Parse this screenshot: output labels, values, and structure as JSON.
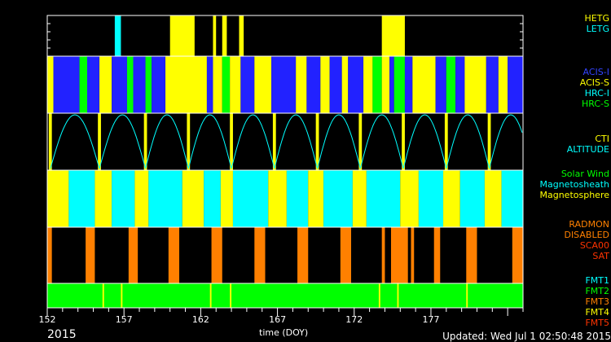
{
  "chart_data": {
    "type": "timeline",
    "xlabel": "time (DOY)",
    "xlim": [
      152,
      183
    ],
    "xticks": [
      "152",
      "157",
      "162",
      "167",
      "172",
      "177"
    ],
    "year": "2015",
    "updated": "Updated: Wed Jul  1 02:50:48 2015",
    "panels": [
      {
        "name": "grating",
        "legend": [
          {
            "label": "HETG",
            "color": "#ffff00"
          },
          {
            "label": "LETG",
            "color": "#00ffff"
          }
        ],
        "segments": [
          {
            "start": 156.4,
            "end": 156.8,
            "color": "#00ffff"
          },
          {
            "start": 160.0,
            "end": 161.6,
            "color": "#ffff00"
          },
          {
            "start": 162.8,
            "end": 163.0,
            "color": "#ffff00"
          },
          {
            "start": 163.4,
            "end": 163.7,
            "color": "#ffff00"
          },
          {
            "start": 164.5,
            "end": 164.8,
            "color": "#ffff00"
          },
          {
            "start": 173.8,
            "end": 175.3,
            "color": "#ffff00"
          }
        ]
      },
      {
        "name": "instrument",
        "legend": [
          {
            "label": "ACIS-I",
            "color": "#2222ff"
          },
          {
            "label": "ACIS-S",
            "color": "#ffff00"
          },
          {
            "label": "HRC-I",
            "color": "#00ffff"
          },
          {
            "label": "HRC-S",
            "color": "#00ff00"
          }
        ],
        "segments": [
          {
            "start": 152.0,
            "end": 152.4,
            "color": "#ffff00"
          },
          {
            "start": 152.4,
            "end": 154.1,
            "color": "#2222ff"
          },
          {
            "start": 154.1,
            "end": 154.6,
            "color": "#00ff00"
          },
          {
            "start": 154.6,
            "end": 155.4,
            "color": "#2222ff"
          },
          {
            "start": 155.4,
            "end": 156.2,
            "color": "#ffff00"
          },
          {
            "start": 156.2,
            "end": 157.2,
            "color": "#2222ff"
          },
          {
            "start": 157.2,
            "end": 157.6,
            "color": "#00ff00"
          },
          {
            "start": 157.6,
            "end": 158.4,
            "color": "#2222ff"
          },
          {
            "start": 158.4,
            "end": 158.8,
            "color": "#00ff00"
          },
          {
            "start": 158.8,
            "end": 159.7,
            "color": "#2222ff"
          },
          {
            "start": 159.7,
            "end": 162.4,
            "color": "#ffff00"
          },
          {
            "start": 162.4,
            "end": 162.8,
            "color": "#2222ff"
          },
          {
            "start": 162.8,
            "end": 163.4,
            "color": "#ffff00"
          },
          {
            "start": 163.4,
            "end": 163.9,
            "color": "#00ff00"
          },
          {
            "start": 163.9,
            "end": 164.6,
            "color": "#ffff00"
          },
          {
            "start": 164.6,
            "end": 165.5,
            "color": "#2222ff"
          },
          {
            "start": 165.5,
            "end": 166.6,
            "color": "#ffff00"
          },
          {
            "start": 166.6,
            "end": 168.2,
            "color": "#2222ff"
          },
          {
            "start": 168.2,
            "end": 168.9,
            "color": "#ffff00"
          },
          {
            "start": 168.9,
            "end": 169.8,
            "color": "#2222ff"
          },
          {
            "start": 169.8,
            "end": 170.4,
            "color": "#ffff00"
          },
          {
            "start": 170.4,
            "end": 171.2,
            "color": "#2222ff"
          },
          {
            "start": 171.2,
            "end": 171.6,
            "color": "#ffff00"
          },
          {
            "start": 171.6,
            "end": 172.6,
            "color": "#2222ff"
          },
          {
            "start": 172.6,
            "end": 173.2,
            "color": "#ffff00"
          },
          {
            "start": 173.2,
            "end": 173.8,
            "color": "#00ff00"
          },
          {
            "start": 173.8,
            "end": 174.3,
            "color": "#ffff00"
          },
          {
            "start": 174.3,
            "end": 174.6,
            "color": "#2222ff"
          },
          {
            "start": 174.6,
            "end": 175.3,
            "color": "#00ff00"
          },
          {
            "start": 175.3,
            "end": 175.8,
            "color": "#2222ff"
          },
          {
            "start": 175.8,
            "end": 177.3,
            "color": "#ffff00"
          },
          {
            "start": 177.3,
            "end": 178.0,
            "color": "#2222ff"
          },
          {
            "start": 178.0,
            "end": 178.6,
            "color": "#00ff00"
          },
          {
            "start": 178.6,
            "end": 179.2,
            "color": "#2222ff"
          },
          {
            "start": 179.2,
            "end": 180.6,
            "color": "#ffff00"
          },
          {
            "start": 180.6,
            "end": 181.4,
            "color": "#2222ff"
          },
          {
            "start": 181.4,
            "end": 182.0,
            "color": "#ffff00"
          },
          {
            "start": 182.0,
            "end": 183.0,
            "color": "#2222ff"
          }
        ]
      },
      {
        "name": "cti-altitude",
        "legend": [
          {
            "label": "CTI",
            "color": "#ffff00"
          },
          {
            "label": "ALTITUDE",
            "color": "#00ffff"
          }
        ],
        "segments": [
          {
            "start": 152.1,
            "end": 152.3,
            "color": "#ffff00"
          },
          {
            "start": 155.3,
            "end": 155.5,
            "color": "#ffff00"
          },
          {
            "start": 158.3,
            "end": 158.5,
            "color": "#ffff00"
          },
          {
            "start": 161.1,
            "end": 161.3,
            "color": "#ffff00"
          },
          {
            "start": 163.9,
            "end": 164.1,
            "color": "#ffff00"
          },
          {
            "start": 166.7,
            "end": 166.9,
            "color": "#ffff00"
          },
          {
            "start": 169.5,
            "end": 169.7,
            "color": "#ffff00"
          },
          {
            "start": 172.3,
            "end": 172.5,
            "color": "#ffff00"
          },
          {
            "start": 175.1,
            "end": 175.3,
            "color": "#ffff00"
          },
          {
            "start": 177.9,
            "end": 178.1,
            "color": "#ffff00"
          },
          {
            "start": 180.7,
            "end": 180.9,
            "color": "#ffff00"
          }
        ],
        "arc_boundaries": [
          152.2,
          155.4,
          158.4,
          161.2,
          164.0,
          166.8,
          169.6,
          172.4,
          175.2,
          178.0,
          180.8,
          183.6
        ]
      },
      {
        "name": "environment",
        "legend": [
          {
            "label": "Solar Wind",
            "color": "#00ff00"
          },
          {
            "label": "Magnetosheath",
            "color": "#00ffff"
          },
          {
            "label": "Magnetosphere",
            "color": "#ffff00"
          }
        ],
        "segments": [
          {
            "start": 152.0,
            "end": 153.4,
            "color": "#ffff00"
          },
          {
            "start": 153.4,
            "end": 155.1,
            "color": "#00ffff"
          },
          {
            "start": 155.1,
            "end": 156.2,
            "color": "#ffff00"
          },
          {
            "start": 156.2,
            "end": 157.7,
            "color": "#00ffff"
          },
          {
            "start": 157.7,
            "end": 158.6,
            "color": "#ffff00"
          },
          {
            "start": 158.6,
            "end": 160.8,
            "color": "#00ffff"
          },
          {
            "start": 160.8,
            "end": 162.2,
            "color": "#ffff00"
          },
          {
            "start": 162.2,
            "end": 163.3,
            "color": "#00ffff"
          },
          {
            "start": 163.3,
            "end": 164.1,
            "color": "#ffff00"
          },
          {
            "start": 164.1,
            "end": 166.4,
            "color": "#00ffff"
          },
          {
            "start": 166.4,
            "end": 167.6,
            "color": "#ffff00"
          },
          {
            "start": 167.6,
            "end": 169.0,
            "color": "#00ffff"
          },
          {
            "start": 169.0,
            "end": 170.0,
            "color": "#ffff00"
          },
          {
            "start": 170.0,
            "end": 171.9,
            "color": "#00ffff"
          },
          {
            "start": 171.9,
            "end": 172.8,
            "color": "#ffff00"
          },
          {
            "start": 172.8,
            "end": 175.0,
            "color": "#00ffff"
          },
          {
            "start": 175.0,
            "end": 176.2,
            "color": "#ffff00"
          },
          {
            "start": 176.2,
            "end": 177.8,
            "color": "#00ffff"
          },
          {
            "start": 177.8,
            "end": 178.9,
            "color": "#ffff00"
          },
          {
            "start": 178.9,
            "end": 180.5,
            "color": "#00ffff"
          },
          {
            "start": 180.5,
            "end": 181.6,
            "color": "#ffff00"
          },
          {
            "start": 181.6,
            "end": 183.0,
            "color": "#00ffff"
          }
        ]
      },
      {
        "name": "radiation",
        "legend": [
          {
            "label": "RADMON",
            "color": "#ff8000"
          },
          {
            "label": "DISABLED",
            "color": "#ff8000"
          },
          {
            "label": "SCA00",
            "color": "#ff3300"
          },
          {
            "label": "SAT",
            "color": "#ff3300"
          }
        ],
        "segments": [
          {
            "start": 152.0,
            "end": 152.3,
            "color": "#ff8000"
          },
          {
            "start": 154.5,
            "end": 155.1,
            "color": "#ff8000"
          },
          {
            "start": 157.3,
            "end": 157.9,
            "color": "#ff8000"
          },
          {
            "start": 159.9,
            "end": 160.6,
            "color": "#ff8000"
          },
          {
            "start": 162.7,
            "end": 163.4,
            "color": "#ff8000"
          },
          {
            "start": 165.5,
            "end": 166.2,
            "color": "#ff8000"
          },
          {
            "start": 168.3,
            "end": 169.0,
            "color": "#ff8000"
          },
          {
            "start": 171.1,
            "end": 171.8,
            "color": "#ff8000"
          },
          {
            "start": 173.8,
            "end": 174.0,
            "color": "#ff8000"
          },
          {
            "start": 174.4,
            "end": 175.5,
            "color": "#ff8000"
          },
          {
            "start": 175.7,
            "end": 175.9,
            "color": "#ff8000"
          },
          {
            "start": 177.2,
            "end": 177.6,
            "color": "#ff8000"
          },
          {
            "start": 179.3,
            "end": 180.0,
            "color": "#ff8000"
          },
          {
            "start": 182.3,
            "end": 183.0,
            "color": "#ff8000"
          }
        ]
      },
      {
        "name": "format",
        "legend": [
          {
            "label": "FMT1",
            "color": "#00ffff"
          },
          {
            "label": "FMT2",
            "color": "#00ff00"
          },
          {
            "label": "FMT3",
            "color": "#ff8000"
          },
          {
            "label": "FMT4",
            "color": "#ffff00"
          },
          {
            "label": "FMT5",
            "color": "#ff3300"
          }
        ],
        "segments": [
          {
            "start": 152.0,
            "end": 183.0,
            "color": "#00ff00"
          },
          {
            "start": 155.6,
            "end": 155.7,
            "color": "#ffff00"
          },
          {
            "start": 156.8,
            "end": 156.9,
            "color": "#ffff00"
          },
          {
            "start": 162.6,
            "end": 162.7,
            "color": "#ffff00"
          },
          {
            "start": 163.9,
            "end": 164.0,
            "color": "#ffff00"
          },
          {
            "start": 173.6,
            "end": 173.7,
            "color": "#ffff00"
          },
          {
            "start": 174.8,
            "end": 174.9,
            "color": "#ffff00"
          },
          {
            "start": 179.3,
            "end": 179.4,
            "color": "#ffff00"
          }
        ]
      }
    ]
  }
}
